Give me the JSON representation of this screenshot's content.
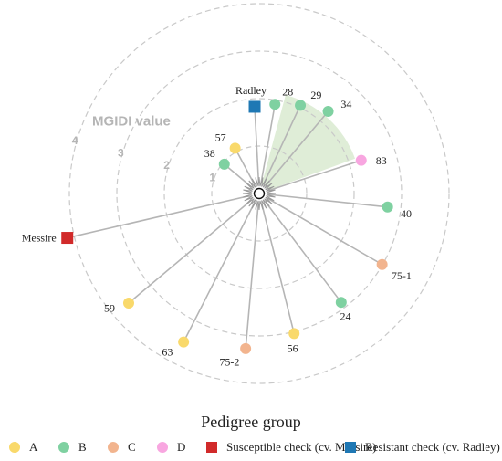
{
  "chart_data": {
    "type": "radial",
    "axis_title": "MGIDI value",
    "rings": [
      1,
      2,
      3,
      4
    ],
    "ring_labels": [
      "1",
      "2",
      "3",
      "4"
    ],
    "selection_sector": {
      "from_angle_deg": 20,
      "to_angle_deg": 75,
      "radius_value": 2.15,
      "color": "#d9ead0"
    },
    "points": [
      {
        "label": "Radley",
        "group": "R",
        "mgidi": 1.83,
        "angle_deg": 93
      },
      {
        "label": "28",
        "group": "B",
        "mgidi": 1.91,
        "angle_deg": 80
      },
      {
        "label": "29",
        "group": "B",
        "mgidi": 2.05,
        "angle_deg": 65
      },
      {
        "label": "34",
        "group": "B",
        "mgidi": 2.26,
        "angle_deg": 50
      },
      {
        "label": "57",
        "group": "A",
        "mgidi": 1.08,
        "angle_deg": 118
      },
      {
        "label": "38",
        "group": "B",
        "mgidi": 0.96,
        "angle_deg": 140
      },
      {
        "label": "83",
        "group": "D",
        "mgidi": 2.26,
        "angle_deg": 18
      },
      {
        "label": "40",
        "group": "B",
        "mgidi": 2.72,
        "angle_deg": -6
      },
      {
        "label": "75-1",
        "group": "C",
        "mgidi": 2.99,
        "angle_deg": -30
      },
      {
        "label": "24",
        "group": "B",
        "mgidi": 2.87,
        "angle_deg": -53
      },
      {
        "label": "56",
        "group": "A",
        "mgidi": 3.04,
        "angle_deg": -76
      },
      {
        "label": "75-2",
        "group": "C",
        "mgidi": 3.28,
        "angle_deg": -95
      },
      {
        "label": "63",
        "group": "A",
        "mgidi": 3.51,
        "angle_deg": -117
      },
      {
        "label": "59",
        "group": "A",
        "mgidi": 3.59,
        "angle_deg": -140
      },
      {
        "label": "Messire",
        "group": "S",
        "mgidi": 4.15,
        "angle_deg": -167
      }
    ]
  },
  "legend": {
    "title": "Pedigree group",
    "items": [
      {
        "key": "A",
        "label": "A",
        "color": "#f9d96b",
        "shape": "circle"
      },
      {
        "key": "B",
        "label": "B",
        "color": "#7fd1a1",
        "shape": "circle"
      },
      {
        "key": "C",
        "label": "C",
        "color": "#f2b48e",
        "shape": "circle"
      },
      {
        "key": "D",
        "label": "D",
        "color": "#f8a6e0",
        "shape": "circle"
      },
      {
        "key": "S",
        "label": "Susceptible check (cv. Messire)",
        "color": "#d12a2a",
        "shape": "square"
      },
      {
        "key": "R",
        "label": "Resistant check (cv. Radley)",
        "color": "#1f78b4",
        "shape": "square"
      }
    ]
  }
}
